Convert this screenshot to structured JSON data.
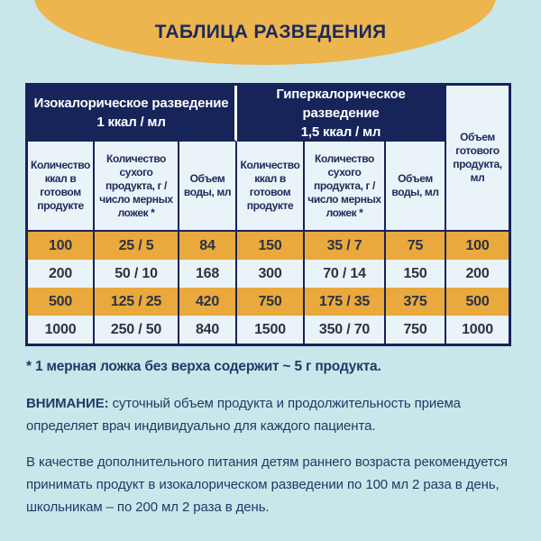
{
  "title": "ТАБЛИЦА РАЗВЕДЕНИЯ",
  "table": {
    "groups": [
      {
        "line1": "Изокалорическое разведение",
        "line2": "1 ккал / мл"
      },
      {
        "line1": "Гиперкалорическое разведение",
        "line2": "1,5 ккал / мл"
      }
    ],
    "columns": [
      "Количество ккал в готовом продукте",
      "Количество сухого продукта, г / число мерных ложек *",
      "Объем воды, мл",
      "Количество ккал в готовом продукте",
      "Количество сухого продукта, г / число мерных ложек *",
      "Объем воды, мл",
      "Объем готового продукта, мл"
    ],
    "rows": [
      {
        "cells": [
          "100",
          "25 / 5",
          "84",
          "150",
          "35 / 7",
          "75",
          "100"
        ]
      },
      {
        "cells": [
          "200",
          "50 / 10",
          "168",
          "300",
          "70 / 14",
          "150",
          "200"
        ]
      },
      {
        "cells": [
          "500",
          "125 / 25",
          "420",
          "750",
          "175 / 35",
          "375",
          "500"
        ]
      },
      {
        "cells": [
          "1000",
          "250 / 50",
          "840",
          "1500",
          "350 / 70",
          "750",
          "1000"
        ]
      }
    ]
  },
  "footnote": "* 1 мерная ложка без верха содержит ~ 5 г продукта.",
  "warning": {
    "label": "ВНИМАНИЕ:",
    "line1": " суточный объем продукта и продолжительность приема",
    "line2": "определяет врач индивидуально для каждого пациента."
  },
  "note": {
    "line1": "В качестве дополнительного питания детям раннего возраста рекомендуется",
    "line2": "принимать продукт в изокалорическом разведении по 100 мл 2 раза в день,",
    "line3": "школьникам – по 200 мл 2 раза в день."
  },
  "colors": {
    "background": "#c9e6ea",
    "arc": "#edb54e",
    "navy_header": "#17245a",
    "row_orange": "#e9a93c",
    "cell_light": "#e9f3f8",
    "heading_text": "#1d2a5a",
    "footer_text": "#1f3a68"
  }
}
